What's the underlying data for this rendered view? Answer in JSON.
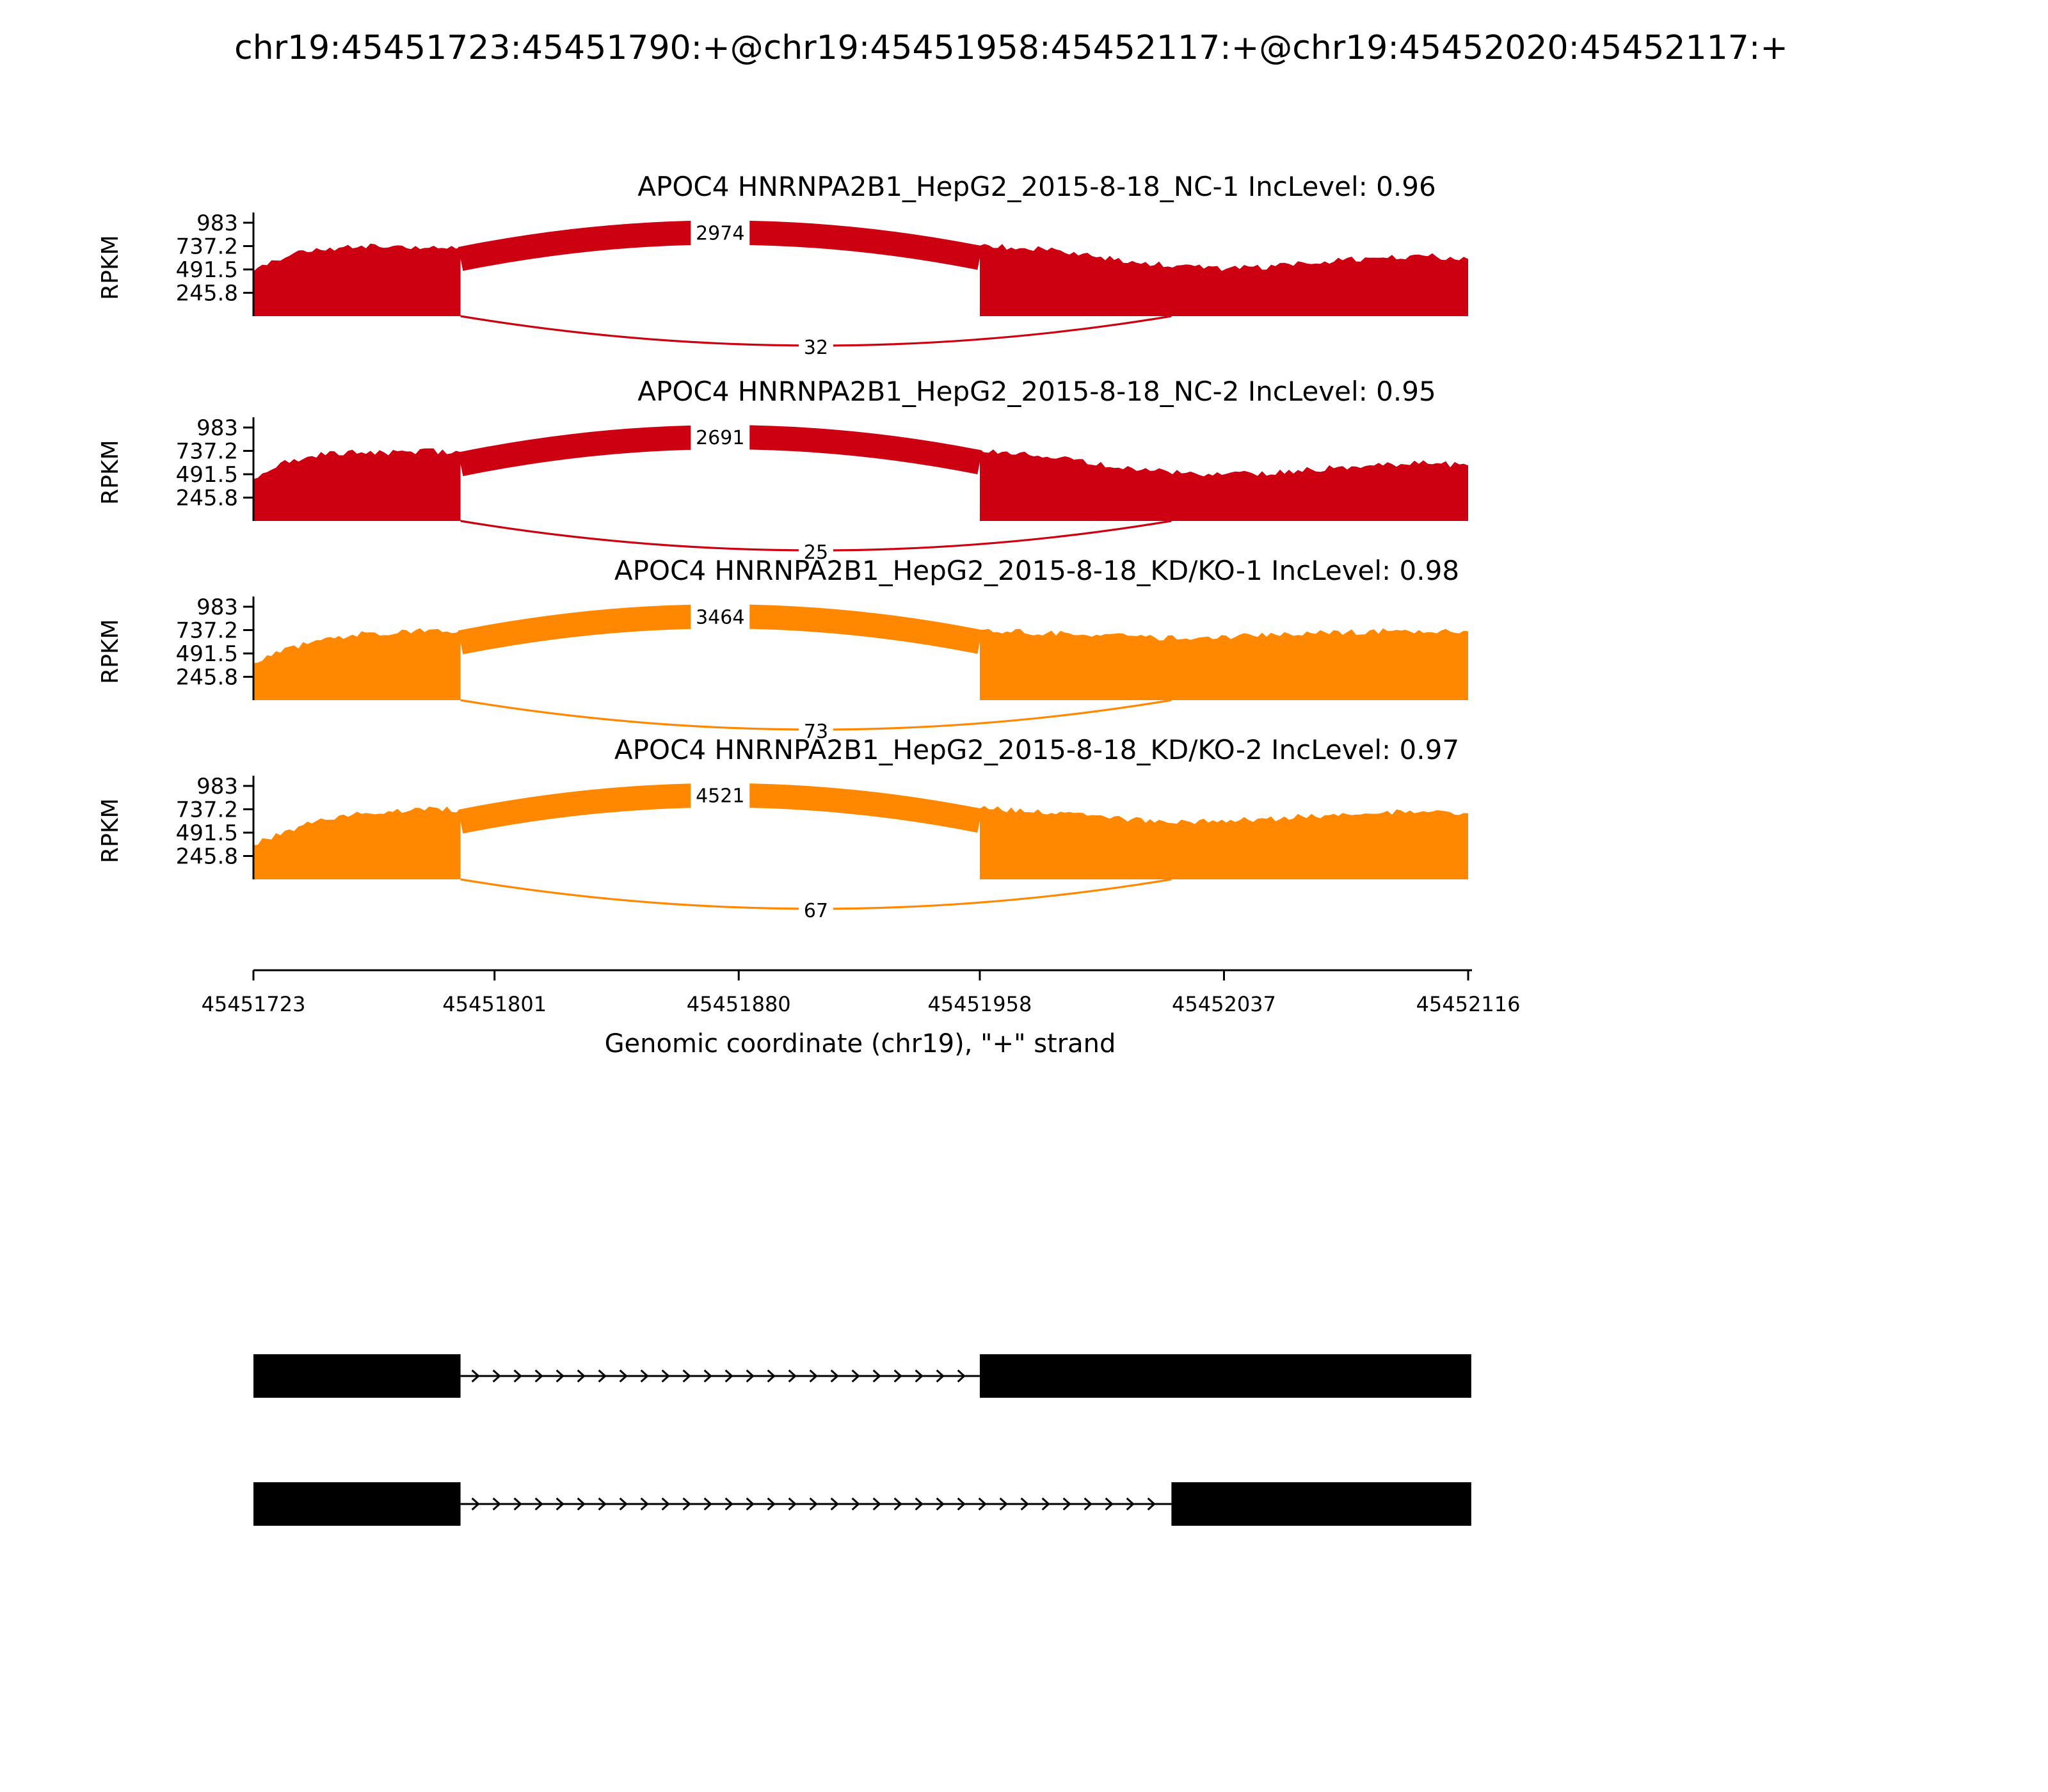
{
  "chart_data": {
    "type": "sashimi",
    "title": "chr19:45451723:45451790:+@chr19:45451958:45452117:+@chr19:45452020:45452117:+",
    "xlabel": "Genomic coordinate (chr19), \"+\" strand",
    "ylabel": "RPKM",
    "x_domain": [
      45451723,
      45452116
    ],
    "x_ticks": [
      45451723,
      45451801,
      45451880,
      45451958,
      45452037,
      45452116
    ],
    "y_ticks": [
      983,
      737.2,
      491.5,
      245.8
    ],
    "y_max": 983,
    "grid": false,
    "tracks": [
      {
        "name": "APOC4 HNRNPA2B1_HepG2_2015-8-18_NC-1",
        "inc_level": "0.96",
        "color": "#CC0011",
        "coverage_regions": [
          {
            "start": 45451723,
            "end": 45451790,
            "profile": [
              470,
              630,
              700,
              725,
              735,
              720,
              740,
              730
            ]
          },
          {
            "start": 45451958,
            "end": 45452116,
            "profile": [
              740,
              725,
              690,
              620,
              565,
              525,
              505,
              520,
              555,
              595,
              620,
              635,
              600
            ]
          }
        ],
        "junctions": [
          {
            "from": 45451790,
            "to": 45451958,
            "count": 2974,
            "arc": "top"
          },
          {
            "from": 45451790,
            "to": 45452020,
            "count": 32,
            "arc": "bottom"
          }
        ]
      },
      {
        "name": "APOC4 HNRNPA2B1_HepG2_2015-8-18_NC-2",
        "inc_level": "0.95",
        "color": "#CC0011",
        "coverage_regions": [
          {
            "start": 45451723,
            "end": 45451790,
            "profile": [
              440,
              610,
              690,
              720,
              730,
              715,
              735,
              725
            ]
          },
          {
            "start": 45451958,
            "end": 45452116,
            "profile": [
              745,
              715,
              670,
              600,
              545,
              505,
              490,
              505,
              535,
              570,
              595,
              610,
              585
            ]
          }
        ],
        "junctions": [
          {
            "from": 45451790,
            "to": 45451958,
            "count": 2691,
            "arc": "top"
          },
          {
            "from": 45451790,
            "to": 45452020,
            "count": 25,
            "arc": "bottom"
          }
        ]
      },
      {
        "name": "APOC4 HNRNPA2B1_HepG2_2015-8-18_KD/KO-1",
        "inc_level": "0.98",
        "color": "#FF8800",
        "coverage_regions": [
          {
            "start": 45451723,
            "end": 45451790,
            "profile": [
              390,
              520,
              610,
              670,
              705,
              720,
              730,
              735
            ]
          },
          {
            "start": 45451958,
            "end": 45452116,
            "profile": [
              740,
              720,
              700,
              680,
              665,
              655,
              665,
              680,
              700,
              715,
              725,
              730,
              725
            ]
          }
        ],
        "junctions": [
          {
            "from": 45451790,
            "to": 45451958,
            "count": 3464,
            "arc": "top"
          },
          {
            "from": 45451790,
            "to": 45452020,
            "count": 73,
            "arc": "bottom"
          }
        ]
      },
      {
        "name": "APOC4 HNRNPA2B1_HepG2_2015-8-18_KD/KO-2",
        "inc_level": "0.97",
        "color": "#FF8800",
        "coverage_regions": [
          {
            "start": 45451723,
            "end": 45451790,
            "profile": [
              360,
              500,
              600,
              665,
              705,
              725,
              740,
              735
            ]
          },
          {
            "start": 45451958,
            "end": 45452116,
            "profile": [
              745,
              730,
              695,
              655,
              625,
              605,
              615,
              635,
              665,
              690,
              705,
              700,
              695
            ]
          }
        ],
        "junctions": [
          {
            "from": 45451790,
            "to": 45451958,
            "count": 4521,
            "arc": "top"
          },
          {
            "from": 45451790,
            "to": 45452020,
            "count": 67,
            "arc": "bottom"
          }
        ]
      }
    ],
    "isoforms": [
      {
        "exons": [
          [
            45451723,
            45451790
          ],
          [
            45451958,
            45452117
          ]
        ]
      },
      {
        "exons": [
          [
            45451723,
            45451790
          ],
          [
            45452020,
            45452117
          ]
        ]
      }
    ]
  }
}
